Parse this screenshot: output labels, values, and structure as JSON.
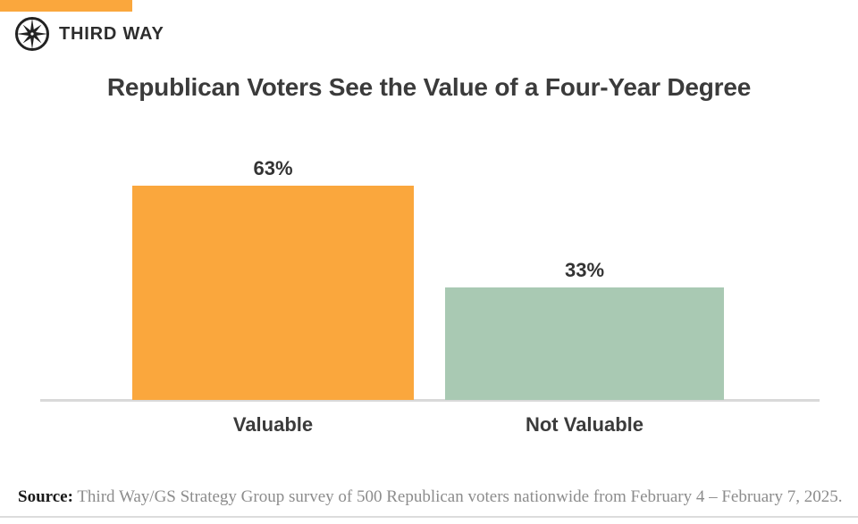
{
  "brand": {
    "logo_text": "THIRD WAY",
    "accent_color": "#FAA73D",
    "logo_icon": "compass-star-icon"
  },
  "chart_data": {
    "type": "bar",
    "title": "Republican Voters See the Value of a Four-Year Degree",
    "categories": [
      "Valuable",
      "Not Valuable"
    ],
    "values": [
      63,
      33
    ],
    "value_labels": [
      "63%",
      "33%"
    ],
    "colors": [
      "#FAA73D",
      "#A9C9B3"
    ],
    "xlabel": "",
    "ylabel": "",
    "ylim": [
      0,
      70
    ],
    "grid": false,
    "legend": false,
    "value_label_position": "above-bar"
  },
  "source": {
    "label": "Source:",
    "text": " Third Way/GS Strategy Group survey of 500 Republican voters nationwide from February 4 – February 7, 2025."
  }
}
